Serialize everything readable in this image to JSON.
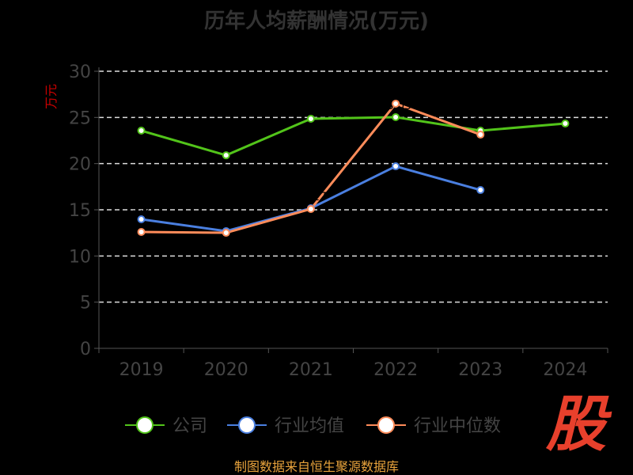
{
  "chart_data": {
    "type": "line",
    "title": "历年人均薪酬情况(万元)",
    "ylabel": "万元",
    "xlabel": "",
    "categories": [
      "2019",
      "2020",
      "2021",
      "2022",
      "2023",
      "2024"
    ],
    "ylim": [
      0,
      30
    ],
    "yticks": [
      "0",
      "5",
      "10",
      "15",
      "20",
      "25",
      "30"
    ],
    "grid": true,
    "legend_position": "bottom",
    "series": [
      {
        "name": "公司",
        "color": "#52c41a",
        "values": [
          23.57,
          20.9,
          24.86,
          25.03,
          23.57,
          24.34
        ]
      },
      {
        "name": "行业均值",
        "color": "#4a7fe0",
        "values": [
          13.97,
          12.69,
          15.17,
          19.71,
          17.14,
          null
        ]
      },
      {
        "name": "行业中位数",
        "color": "#ff8c5a",
        "values": [
          12.6,
          12.51,
          15.09,
          26.49,
          23.14,
          null
        ]
      }
    ]
  },
  "source": "制图数据来自恒生聚源数据库",
  "logo_text": "股"
}
